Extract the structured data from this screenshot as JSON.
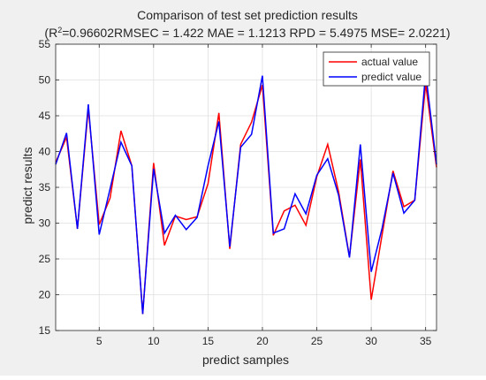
{
  "figure": {
    "background": "#f0f0f0"
  },
  "chart_data": {
    "type": "line",
    "title": "Comparison of test set prediction results",
    "subtitle": {
      "r2_prefix": "(R",
      "r2_exponent": "2",
      "rest": "=0.96602RMSEC = 1.422 MAE = 1.1213 RPD = 5.4975 MSE= 2.0221)"
    },
    "xlabel": "predict samples",
    "ylabel": "predict results",
    "xlim": [
      1,
      36
    ],
    "ylim": [
      15,
      55
    ],
    "xticks": [
      5,
      10,
      15,
      20,
      25,
      30,
      35
    ],
    "yticks": [
      15,
      20,
      25,
      30,
      35,
      40,
      45,
      50,
      55
    ],
    "grid": true,
    "legend_position": "top-right",
    "x": [
      1,
      2,
      3,
      4,
      5,
      6,
      7,
      8,
      9,
      10,
      11,
      12,
      13,
      14,
      15,
      16,
      17,
      18,
      19,
      20,
      21,
      22,
      23,
      24,
      25,
      26,
      27,
      28,
      29,
      30,
      31,
      32,
      33,
      34,
      35,
      36
    ],
    "series": [
      {
        "name": "actual value",
        "color": "#ff0000",
        "values": [
          38.5,
          42.0,
          29.2,
          46.0,
          29.8,
          33.5,
          42.9,
          38.0,
          17.3,
          38.4,
          26.9,
          31.0,
          30.5,
          30.9,
          35.5,
          45.4,
          26.4,
          41.0,
          44.1,
          49.3,
          28.3,
          31.7,
          32.5,
          29.7,
          36.5,
          41.0,
          34.4,
          25.3,
          38.9,
          19.3,
          28.4,
          37.3,
          32.3,
          33.2,
          49.5,
          37.8
        ]
      },
      {
        "name": "predict value",
        "color": "#0000ff",
        "values": [
          38.2,
          42.6,
          29.2,
          46.6,
          28.4,
          34.8,
          41.3,
          38.0,
          17.3,
          37.6,
          28.6,
          31.1,
          29.1,
          30.8,
          38.0,
          44.2,
          26.7,
          40.6,
          42.4,
          50.6,
          28.6,
          29.2,
          34.1,
          31.3,
          36.7,
          39.0,
          33.9,
          25.2,
          41.0,
          23.2,
          29.3,
          37.0,
          31.4,
          33.2,
          51.0,
          38.2
        ]
      }
    ]
  }
}
